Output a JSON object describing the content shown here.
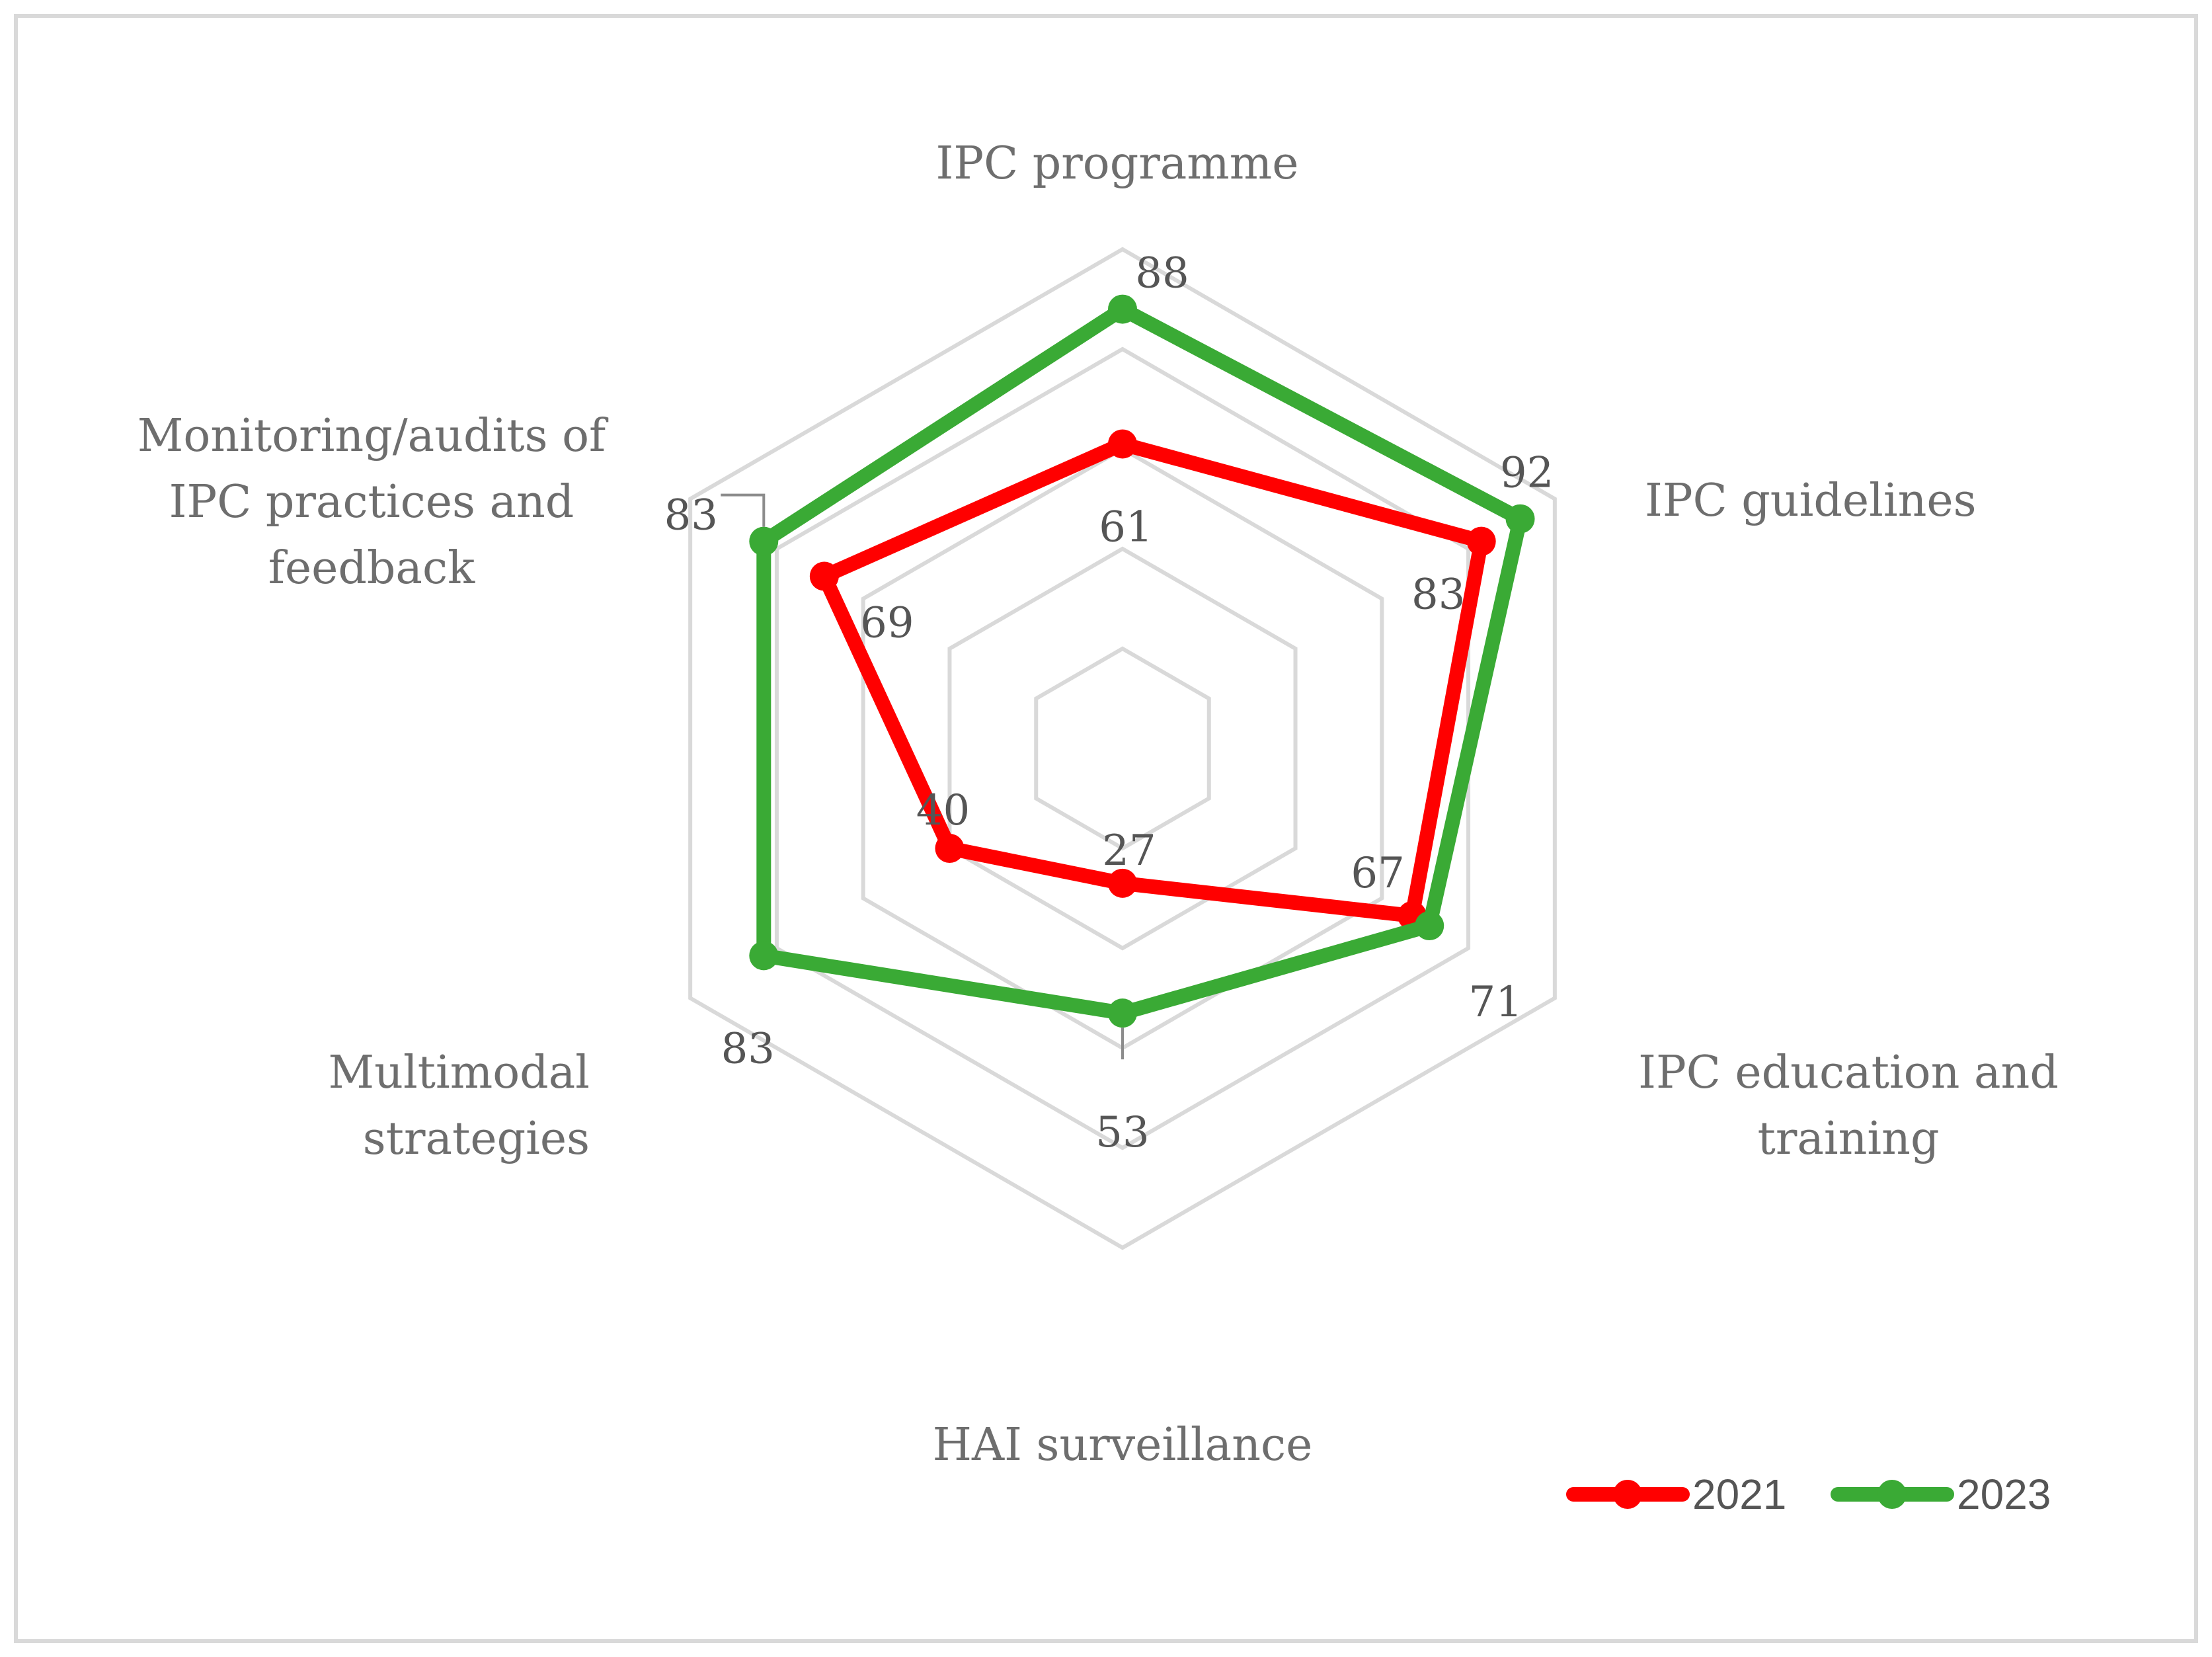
{
  "chart_data": {
    "type": "radar",
    "title": "",
    "categories": [
      "IPC programme",
      "IPC guidelines",
      "IPC education and training",
      "HAI surveillance",
      "Multimodal strategies",
      "Monitoring/audits of IPC practices and feedback"
    ],
    "category_lines": [
      [
        "IPC programme"
      ],
      [
        "IPC guidelines"
      ],
      [
        "IPC education and",
        "training"
      ],
      [
        "HAI surveillance"
      ],
      [
        "Multimodal",
        "strategies"
      ],
      [
        "Monitoring/audits of",
        "IPC practices and",
        "feedback"
      ]
    ],
    "series": [
      {
        "name": "2021",
        "color": "#ff0000",
        "values": [
          61,
          83,
          67,
          27,
          40,
          69
        ],
        "labels": [
          "61",
          "83",
          "67",
          "27",
          "40",
          "69"
        ]
      },
      {
        "name": "2023",
        "color": "#3aaa35",
        "values": [
          88,
          92,
          71,
          53,
          83,
          83
        ],
        "labels": [
          "88",
          "92",
          "71",
          "53",
          "83",
          "83"
        ]
      }
    ],
    "rlim": [
      0,
      100
    ],
    "ring_step": 20,
    "grid": true,
    "gridline_color": "#d9d9d9",
    "legend_position": "bottom-right"
  }
}
